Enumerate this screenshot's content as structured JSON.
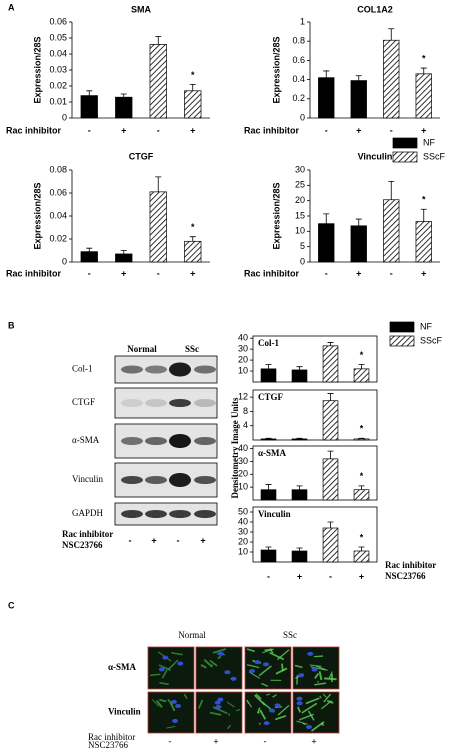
{
  "panel_labels": [
    "A",
    "B",
    "C"
  ],
  "panel_a_legend": [
    {
      "name": "NF",
      "color": "#000000"
    },
    {
      "name": "SScF",
      "color": "hatch"
    }
  ],
  "panel_b_legend": [
    {
      "name": "NF",
      "color": "#000000"
    },
    {
      "name": "SScF",
      "color": "hatch"
    }
  ],
  "panel_b_y_label": "Densitometry Image Units",
  "chart_data": [
    {
      "type": "bar",
      "title": "SMA",
      "y_label": "Expression/28S",
      "x_label": [
        "Rac inhibitor"
      ],
      "categories": [
        "-",
        "+",
        "-",
        "+"
      ],
      "values": [
        0.014,
        0.013,
        0.046,
        0.017
      ],
      "errors": [
        0.003,
        0.002,
        0.005,
        0.004
      ],
      "colors": [
        "#000000",
        "#000000",
        "hatch",
        "hatch"
      ],
      "ylim": [
        0,
        0.06
      ],
      "yticks": [
        0,
        0.01,
        0.02,
        0.03,
        0.04,
        0.05,
        0.06
      ],
      "annotations": [
        {
          "text": "*",
          "category": 3
        }
      ]
    },
    {
      "type": "bar",
      "title": "COL1A2",
      "y_label": "Expression/28S",
      "x_label": [
        "Rac inhibitor"
      ],
      "categories": [
        "-",
        "+",
        "-",
        "+"
      ],
      "values": [
        0.42,
        0.39,
        0.81,
        0.46
      ],
      "errors": [
        0.07,
        0.05,
        0.12,
        0.06
      ],
      "colors": [
        "#000000",
        "#000000",
        "hatch",
        "hatch"
      ],
      "ylim": [
        0,
        1
      ],
      "yticks": [
        0,
        0.2,
        0.4,
        0.6,
        0.8,
        1
      ],
      "annotations": [
        {
          "text": "*",
          "category": 3
        }
      ]
    },
    {
      "type": "bar",
      "title": "CTGF",
      "y_label": "Expression/28S",
      "x_label": [
        "Rac inhibitor"
      ],
      "categories": [
        "-",
        "+",
        "-",
        "+"
      ],
      "values": [
        0.009,
        0.007,
        0.061,
        0.018
      ],
      "errors": [
        0.003,
        0.003,
        0.013,
        0.004
      ],
      "colors": [
        "#000000",
        "#000000",
        "hatch",
        "hatch"
      ],
      "ylim": [
        0,
        0.08
      ],
      "yticks": [
        0,
        0.02,
        0.04,
        0.06,
        0.08
      ],
      "annotations": [
        {
          "text": "*",
          "category": 3
        }
      ]
    },
    {
      "type": "bar",
      "title": "Vinculin",
      "y_label": "Expression/28S",
      "x_label": [
        "Rac inhibitor"
      ],
      "categories": [
        "-",
        "+",
        "-",
        "+"
      ],
      "values": [
        12.5,
        11.8,
        20.3,
        13.2
      ],
      "errors": [
        3.2,
        2.2,
        6,
        4
      ],
      "colors": [
        "#000000",
        "#000000",
        "hatch",
        "hatch"
      ],
      "ylim": [
        0,
        30
      ],
      "yticks": [
        0,
        5,
        10,
        15,
        20,
        25,
        30
      ],
      "annotations": [
        {
          "text": "*",
          "category": 3
        }
      ]
    },
    {
      "type": "bar",
      "title": "Col-1",
      "frame": true,
      "values": [
        12,
        11,
        33,
        12
      ],
      "errors": [
        4,
        3,
        3,
        4
      ],
      "colors": [
        "#000000",
        "#000000",
        "hatch",
        "hatch"
      ],
      "ylim": [
        0,
        42
      ],
      "yticks": [
        10,
        20,
        30,
        40
      ],
      "annotations": [
        {
          "text": "*",
          "category": 3
        }
      ]
    },
    {
      "type": "bar",
      "title": "CTGF",
      "frame": true,
      "values": [
        0.3,
        0.3,
        11,
        0.3
      ],
      "errors": [
        0.2,
        0.2,
        2,
        0.2
      ],
      "colors": [
        "#000000",
        "#000000",
        "hatch",
        "hatch"
      ],
      "ylim": [
        0,
        14
      ],
      "yticks": [
        4,
        8,
        12
      ],
      "annotations": [
        {
          "text": "*",
          "category": 3
        }
      ]
    },
    {
      "type": "bar",
      "title": "α-SMA",
      "frame": true,
      "values": [
        8,
        8,
        32,
        8
      ],
      "errors": [
        4,
        3,
        6,
        3
      ],
      "colors": [
        "#000000",
        "#000000",
        "hatch",
        "hatch"
      ],
      "ylim": [
        0,
        42
      ],
      "yticks": [
        10,
        20,
        30,
        40
      ],
      "annotations": [
        {
          "text": "*",
          "category": 3
        }
      ]
    },
    {
      "type": "bar",
      "title": "Vinculin",
      "frame": true,
      "x_label": [
        "Rac inhibitor",
        "NSC23766"
      ],
      "categories": [
        "-",
        "+",
        "-",
        "+"
      ],
      "values": [
        12,
        11,
        34,
        11
      ],
      "errors": [
        3,
        3,
        6,
        4
      ],
      "colors": [
        "#000000",
        "#000000",
        "hatch",
        "hatch"
      ],
      "ylim": [
        0,
        55
      ],
      "yticks": [
        10,
        20,
        30,
        40,
        50
      ],
      "annotations": [
        {
          "text": "*",
          "category": 3
        }
      ]
    }
  ],
  "blots": {
    "groups": [
      "Normal",
      "SSc"
    ],
    "rows": [
      "Col-1",
      "CTGF",
      "α-SMA",
      "Vinculin",
      "GAPDH"
    ],
    "x_label": [
      "Rac inhibitor",
      "NSC23766"
    ],
    "conditions": [
      "-",
      "+",
      "-",
      "+"
    ]
  },
  "micrographs": {
    "groups": [
      "Normal",
      "SSc"
    ],
    "rows": [
      "α-SMA",
      "Vinculin"
    ],
    "x_label": [
      "Rac inhibitor",
      "NSC23766"
    ],
    "conditions": [
      "-",
      "+",
      "-",
      "+"
    ]
  }
}
